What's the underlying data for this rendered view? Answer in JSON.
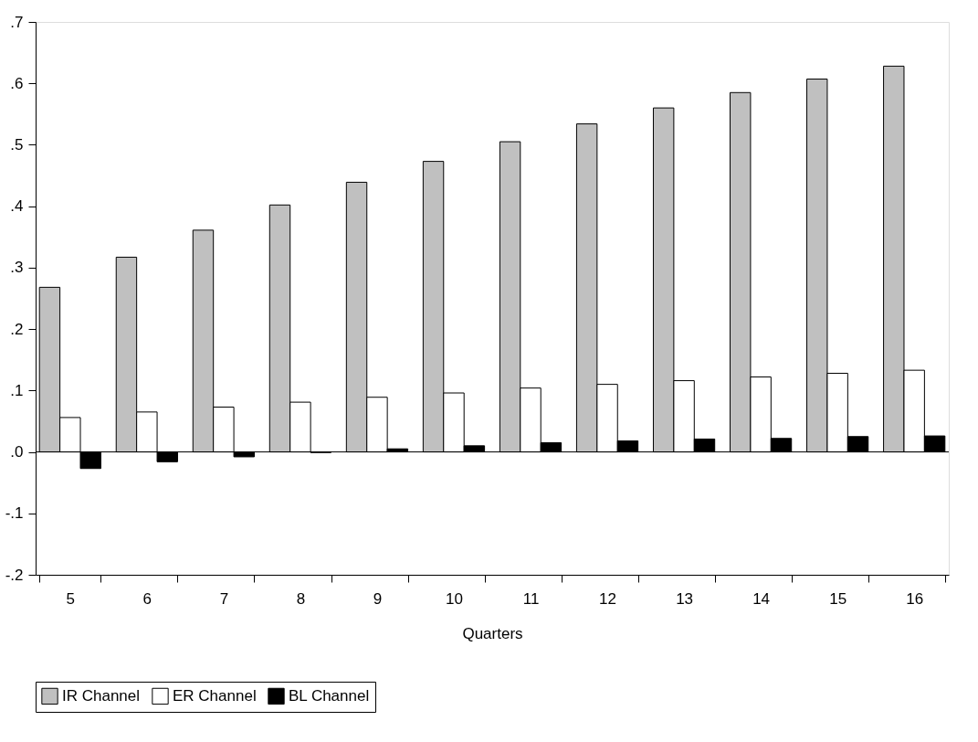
{
  "chart_data": {
    "type": "bar",
    "xlabel": "Quarters",
    "categories": [
      "5",
      "6",
      "7",
      "8",
      "9",
      "10",
      "11",
      "12",
      "13",
      "14",
      "15",
      "16"
    ],
    "series": [
      {
        "name": "IR Channel",
        "color": "#c0c0c0",
        "values": [
          0.268,
          0.317,
          0.361,
          0.402,
          0.439,
          0.473,
          0.505,
          0.534,
          0.56,
          0.585,
          0.607,
          0.628
        ]
      },
      {
        "name": "ER Channel",
        "color": "#ffffff",
        "values": [
          0.056,
          0.065,
          0.073,
          0.081,
          0.089,
          0.096,
          0.104,
          0.11,
          0.116,
          0.122,
          0.128,
          0.133
        ]
      },
      {
        "name": "BL Channel",
        "color": "#000000",
        "values": [
          -0.027,
          -0.016,
          -0.008,
          -0.001,
          0.005,
          0.01,
          0.015,
          0.018,
          0.021,
          0.022,
          0.025,
          0.026
        ]
      }
    ],
    "ylim": [
      -0.2,
      0.7
    ],
    "yticks": [
      {
        "value": -0.2,
        "label": "-.2"
      },
      {
        "value": -0.1,
        "label": "-.1"
      },
      {
        "value": 0,
        "label": ".0"
      },
      {
        "value": 0.1,
        "label": ".1"
      },
      {
        "value": 0.2,
        "label": ".2"
      },
      {
        "value": 0.3,
        "label": ".3"
      },
      {
        "value": 0.4,
        "label": ".4"
      },
      {
        "value": 0.5,
        "label": ".5"
      },
      {
        "value": 0.6,
        "label": ".6"
      },
      {
        "value": 0.7,
        "label": ".7"
      }
    ],
    "ref_lines": [
      {
        "axis": "y",
        "value": 0,
        "color": "#000000"
      }
    ],
    "grid": false,
    "legend": "bottom"
  }
}
